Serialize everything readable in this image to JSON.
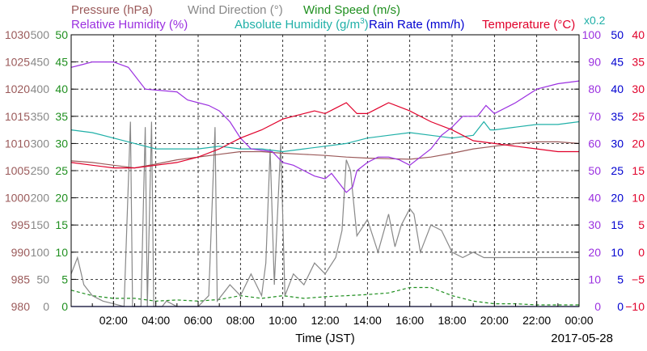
{
  "chart_data": {
    "type": "line",
    "date": "2017-05-28",
    "xlabel": "Time (JST)",
    "x_tick_labels": [
      "02:00",
      "04:00",
      "06:00",
      "08:00",
      "10:00",
      "12:00",
      "14:00",
      "16:00",
      "18:00",
      "20:00",
      "22:00",
      "00:00"
    ],
    "x_range_hours": [
      0,
      24
    ],
    "grid": true,
    "legend": [
      {
        "name": "Pressure",
        "unit": "(hPa)",
        "color": "#9b5a5a"
      },
      {
        "name": "Wind Direction",
        "unit": "(°)",
        "color": "#888888"
      },
      {
        "name": "Wind Speed",
        "unit": "(m/s)",
        "color": "#1f8f1f"
      },
      {
        "name": "Relative Humidity",
        "unit": "(%)",
        "color": "#9b30e0"
      },
      {
        "name": "Absolute Humidity",
        "unit": "(g/m³)",
        "unit_parts": [
          "(g/m",
          "3",
          ")"
        ],
        "color": "#20b0a8"
      },
      {
        "name": "Rain Rate",
        "unit": "(mm/h)",
        "color": "#0000d0"
      },
      {
        "name": "Temperature",
        "unit": "(°C)",
        "color": "#e0002a"
      }
    ],
    "abs_humidity_scale_note": "x0.2",
    "axes": [
      {
        "name": "Pressure",
        "unit": "hPa",
        "range": [
          980,
          1030
        ],
        "ticks": [
          "1030",
          "1025",
          "1020",
          "1015",
          "1010",
          "1005",
          "1000",
          "995",
          "990",
          "985",
          "980"
        ],
        "color": "#9b5a5a"
      },
      {
        "name": "Wind Direction",
        "unit": "deg",
        "range": [
          0,
          500
        ],
        "ticks": [
          "500",
          "450",
          "400",
          "350",
          "300",
          "250",
          "200",
          "150",
          "100",
          "50",
          "0"
        ],
        "color": "#888888"
      },
      {
        "name": "Wind Speed",
        "unit": "m/s",
        "range": [
          0,
          50
        ],
        "ticks": [
          "50",
          "45",
          "40",
          "35",
          "30",
          "25",
          "20",
          "15",
          "10",
          "5",
          "0"
        ],
        "color": "#1f8f1f"
      },
      {
        "name": "Relative Humidity",
        "unit": "%",
        "range": [
          0,
          100
        ],
        "ticks": [
          "100",
          "90",
          "80",
          "70",
          "60",
          "50",
          "40",
          "30",
          "20",
          "10",
          "0"
        ],
        "color": "#9b30e0"
      },
      {
        "name": "Rain Rate",
        "unit": "mm/h",
        "range": [
          0,
          50
        ],
        "ticks": [
          "50",
          "45",
          "40",
          "35",
          "30",
          "25",
          "20",
          "15",
          "10",
          "5",
          "0"
        ],
        "color": "#0000d0"
      },
      {
        "name": "Temperature",
        "unit": "°C",
        "range": [
          -10,
          40
        ],
        "ticks": [
          "40",
          "35",
          "30",
          "25",
          "20",
          "15",
          "10",
          "5",
          "0",
          "−5",
          "−10"
        ],
        "color": "#e0002a"
      }
    ],
    "series": [
      {
        "name": "Relative Humidity",
        "color": "#9b30e0",
        "axis": 3,
        "points": [
          [
            0,
            88
          ],
          [
            0.5,
            89
          ],
          [
            1,
            90
          ],
          [
            2,
            90
          ],
          [
            2.7,
            88
          ],
          [
            3.5,
            80
          ],
          [
            5,
            79
          ],
          [
            5.5,
            76
          ],
          [
            6.5,
            74
          ],
          [
            7,
            72
          ],
          [
            7.5,
            68
          ],
          [
            8,
            62
          ],
          [
            8.5,
            58
          ],
          [
            9.5,
            57
          ],
          [
            10,
            53
          ],
          [
            10.5,
            52
          ],
          [
            11,
            50
          ],
          [
            11.5,
            48
          ],
          [
            12,
            47
          ],
          [
            12.3,
            49
          ],
          [
            12.6,
            46
          ],
          [
            13,
            42
          ],
          [
            13.3,
            44
          ],
          [
            13.5,
            50
          ],
          [
            14,
            53
          ],
          [
            14.5,
            55
          ],
          [
            15,
            55
          ],
          [
            15.5,
            54
          ],
          [
            16,
            52
          ],
          [
            16.5,
            55
          ],
          [
            17,
            58
          ],
          [
            17.5,
            63
          ],
          [
            18,
            66
          ],
          [
            18.5,
            70
          ],
          [
            19.2,
            70
          ],
          [
            19.6,
            74
          ],
          [
            20,
            71
          ],
          [
            21,
            75
          ],
          [
            22,
            80
          ],
          [
            23,
            82
          ],
          [
            24,
            83
          ]
        ]
      },
      {
        "name": "Absolute Humidity",
        "color": "#20b0a8",
        "axis": 3,
        "points": [
          [
            0,
            65
          ],
          [
            1,
            64
          ],
          [
            2,
            62
          ],
          [
            3,
            60
          ],
          [
            3.5,
            59
          ],
          [
            4,
            58
          ],
          [
            5,
            58
          ],
          [
            6,
            58
          ],
          [
            7,
            59
          ],
          [
            8,
            58
          ],
          [
            9,
            58
          ],
          [
            10,
            57
          ],
          [
            11,
            58
          ],
          [
            12,
            59
          ],
          [
            13,
            60
          ],
          [
            14,
            62
          ],
          [
            15,
            63
          ],
          [
            16,
            64
          ],
          [
            17,
            63
          ],
          [
            18,
            62
          ],
          [
            19,
            63
          ],
          [
            19.5,
            68
          ],
          [
            19.8,
            65
          ],
          [
            20,
            65
          ],
          [
            21,
            66
          ],
          [
            22,
            67
          ],
          [
            23,
            67
          ],
          [
            24,
            68
          ]
        ]
      },
      {
        "name": "Temperature",
        "color": "#e0002a",
        "axis": 5,
        "points": [
          [
            0,
            16.5
          ],
          [
            1,
            16
          ],
          [
            2,
            15.5
          ],
          [
            3,
            15.5
          ],
          [
            4,
            16
          ],
          [
            5,
            16.5
          ],
          [
            6,
            17.5
          ],
          [
            7,
            19
          ],
          [
            8,
            21
          ],
          [
            9,
            22.5
          ],
          [
            10,
            24.5
          ],
          [
            11,
            25.5
          ],
          [
            11.5,
            26
          ],
          [
            12,
            25.5
          ],
          [
            12.5,
            26.5
          ],
          [
            13,
            27.5
          ],
          [
            13.5,
            25.5
          ],
          [
            14,
            25.5
          ],
          [
            14.5,
            26.5
          ],
          [
            15,
            27.5
          ],
          [
            16,
            26
          ],
          [
            17,
            24
          ],
          [
            18,
            22.5
          ],
          [
            19,
            20.5
          ],
          [
            20,
            20
          ],
          [
            21,
            19.5
          ],
          [
            22,
            19
          ],
          [
            23,
            18.5
          ],
          [
            24,
            18.5
          ]
        ]
      },
      {
        "name": "Pressure",
        "color": "#9b5a5a",
        "axis": 0,
        "points": [
          [
            0,
            1006.8
          ],
          [
            1,
            1006.5
          ],
          [
            2,
            1006
          ],
          [
            3,
            1005.5
          ],
          [
            4,
            1006.2
          ],
          [
            5,
            1007
          ],
          [
            6,
            1007.5
          ],
          [
            7,
            1008
          ],
          [
            8,
            1008.5
          ],
          [
            9,
            1008.5
          ],
          [
            10,
            1008.2
          ],
          [
            11,
            1008
          ],
          [
            12,
            1007.8
          ],
          [
            13,
            1007.5
          ],
          [
            14,
            1007.3
          ],
          [
            15,
            1007.2
          ],
          [
            16,
            1007.1
          ],
          [
            17,
            1007.5
          ],
          [
            18,
            1008.2
          ],
          [
            19,
            1009
          ],
          [
            20,
            1009.5
          ],
          [
            21,
            1010
          ],
          [
            22,
            1010.3
          ],
          [
            23,
            1010.3
          ],
          [
            24,
            1010
          ]
        ]
      },
      {
        "name": "Wind Direction",
        "color": "#888888",
        "axis": 1,
        "points": [
          [
            0,
            60
          ],
          [
            0.3,
            90
          ],
          [
            0.6,
            40
          ],
          [
            1,
            20
          ],
          [
            1.5,
            10
          ],
          [
            2,
            5
          ],
          [
            2.5,
            0
          ],
          [
            2.8,
            340
          ],
          [
            2.9,
            0
          ],
          [
            3.3,
            0
          ],
          [
            3.5,
            330
          ],
          [
            3.6,
            0
          ],
          [
            3.8,
            340
          ],
          [
            3.9,
            0
          ],
          [
            4.3,
            0
          ],
          [
            4.5,
            10
          ],
          [
            5,
            0
          ],
          [
            6,
            0
          ],
          [
            6.5,
            20
          ],
          [
            6.8,
            330
          ],
          [
            6.9,
            10
          ],
          [
            7.5,
            40
          ],
          [
            8,
            20
          ],
          [
            8.5,
            60
          ],
          [
            9,
            20
          ],
          [
            9.2,
            80
          ],
          [
            9.4,
            290
          ],
          [
            9.6,
            40
          ],
          [
            9.9,
            300
          ],
          [
            10.1,
            20
          ],
          [
            10.5,
            60
          ],
          [
            11,
            40
          ],
          [
            11.5,
            80
          ],
          [
            12,
            60
          ],
          [
            12.5,
            90
          ],
          [
            12.8,
            140
          ],
          [
            13,
            270
          ],
          [
            13.2,
            250
          ],
          [
            13.5,
            130
          ],
          [
            14,
            160
          ],
          [
            14.5,
            100
          ],
          [
            15,
            170
          ],
          [
            15.3,
            110
          ],
          [
            15.6,
            150
          ],
          [
            16,
            180
          ],
          [
            16.2,
            170
          ],
          [
            16.5,
            100
          ],
          [
            17,
            150
          ],
          [
            17.5,
            140
          ],
          [
            18,
            100
          ],
          [
            18.5,
            90
          ],
          [
            19,
            100
          ],
          [
            19.5,
            90
          ],
          [
            20,
            90
          ],
          [
            21,
            90
          ],
          [
            22,
            90
          ],
          [
            23,
            90
          ],
          [
            24,
            90
          ]
        ]
      },
      {
        "name": "Wind Speed",
        "color": "#1f8f1f",
        "axis": 2,
        "points": [
          [
            0,
            3
          ],
          [
            1,
            2
          ],
          [
            2,
            1.5
          ],
          [
            3,
            1.5
          ],
          [
            4,
            1
          ],
          [
            5,
            1.2
          ],
          [
            6,
            1
          ],
          [
            7,
            1.3
          ],
          [
            8,
            2
          ],
          [
            9,
            1.5
          ],
          [
            10,
            2
          ],
          [
            11,
            1.5
          ],
          [
            12,
            1.8
          ],
          [
            13,
            2
          ],
          [
            14,
            2.2
          ],
          [
            15,
            2.5
          ],
          [
            16,
            3.5
          ],
          [
            17,
            3.5
          ],
          [
            18,
            2
          ],
          [
            19,
            1
          ],
          [
            20,
            0.5
          ],
          [
            21,
            0.5
          ],
          [
            22,
            0.3
          ],
          [
            23,
            0.3
          ],
          [
            24,
            0.3
          ]
        ]
      },
      {
        "name": "Rain Rate",
        "color": "#0000d0",
        "axis": 4,
        "points": [
          [
            0,
            0
          ],
          [
            24,
            0
          ]
        ]
      }
    ]
  }
}
